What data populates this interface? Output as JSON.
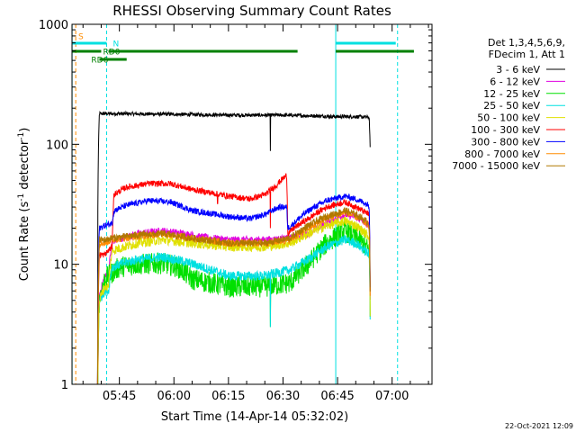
{
  "chart_data": {
    "type": "line",
    "title": "RHESSI Observing Summary Count Rates",
    "xlabel": "Start Time (14-Apr-14 05:32:02)",
    "ylabel_main": "Count Rate (s",
    "ylabel_sup1": "-1",
    "ylabel_mid": " detector",
    "ylabel_sup2": "-1",
    "ylabel_end": ")",
    "yscale": "log",
    "ylim": [
      1,
      1000
    ],
    "xlim_minutes": [
      -13.03,
      85.97
    ],
    "x_ticks": [
      {
        "min": 0,
        "label": "05:45"
      },
      {
        "min": 15,
        "label": "06:00"
      },
      {
        "min": 30,
        "label": "06:15"
      },
      {
        "min": 45,
        "label": "06:30"
      },
      {
        "min": 60,
        "label": "06:45"
      },
      {
        "min": 75,
        "label": "07:00"
      }
    ],
    "y_ticks": [
      {
        "v": 1,
        "label": "1"
      },
      {
        "v": 10,
        "label": "10"
      },
      {
        "v": 100,
        "label": "100"
      },
      {
        "v": 1000,
        "label": "1000"
      }
    ],
    "legend_header": [
      "Det 1,3,4,5,6,9,",
      "FDecim 1, Att 1"
    ],
    "series": [
      {
        "name": "3 - 6 keV",
        "color": "#000000",
        "noise": 0.015,
        "points": [
          [
            -6,
            0
          ],
          [
            -5.5,
            180
          ],
          [
            0,
            180
          ],
          [
            15,
            178
          ],
          [
            30,
            175
          ],
          [
            45,
            175
          ],
          [
            55,
            172
          ],
          [
            60,
            170
          ],
          [
            65,
            170
          ],
          [
            68.7,
            168
          ],
          [
            69,
            80
          ]
        ]
      },
      {
        "name": "6 - 12 keV",
        "color": "#e000e0",
        "noise": 0.03,
        "points": [
          [
            -6,
            0
          ],
          [
            -5.5,
            5.5
          ],
          [
            -4,
            8
          ],
          [
            -3,
            8
          ],
          [
            -2,
            15.5
          ],
          [
            5,
            18
          ],
          [
            12,
            19
          ],
          [
            18,
            18
          ],
          [
            22,
            17
          ],
          [
            30,
            16
          ],
          [
            40,
            16
          ],
          [
            47,
            16.5
          ],
          [
            52,
            18
          ],
          [
            57,
            22
          ],
          [
            62,
            26
          ],
          [
            65,
            25
          ],
          [
            68.7,
            21
          ],
          [
            69,
            3
          ]
        ]
      },
      {
        "name": "12 - 25 keV",
        "color": "#00e000",
        "noise": 0.09,
        "points": [
          [
            -6,
            0
          ],
          [
            -5.5,
            5
          ],
          [
            -4,
            7.5
          ],
          [
            -2,
            8.5
          ],
          [
            0,
            9.5
          ],
          [
            5,
            10
          ],
          [
            12,
            10.2
          ],
          [
            16,
            9.5
          ],
          [
            20,
            7.5
          ],
          [
            25,
            7
          ],
          [
            30,
            6.5
          ],
          [
            40,
            6.5
          ],
          [
            47,
            7
          ],
          [
            52,
            10
          ],
          [
            57,
            15
          ],
          [
            62,
            19
          ],
          [
            65,
            17
          ],
          [
            68.7,
            13
          ],
          [
            69,
            2.5
          ]
        ]
      },
      {
        "name": "25 - 50 keV",
        "color": "#00e0e0",
        "noise": 0.04,
        "points": [
          [
            -6,
            0
          ],
          [
            -5.5,
            5
          ],
          [
            -4,
            6
          ],
          [
            -3,
            6
          ],
          [
            -2,
            9.5
          ],
          [
            5,
            11
          ],
          [
            12,
            11.5
          ],
          [
            18,
            10.5
          ],
          [
            25,
            9
          ],
          [
            30,
            8
          ],
          [
            40,
            8
          ],
          [
            47,
            9
          ],
          [
            52,
            11
          ],
          [
            57,
            14
          ],
          [
            62,
            16
          ],
          [
            65,
            15
          ],
          [
            68.7,
            12
          ],
          [
            69,
            2.5
          ]
        ]
      },
      {
        "name": "50 - 100 keV",
        "color": "#e0e000",
        "noise": 0.04,
        "points": [
          [
            -6,
            0
          ],
          [
            -5.5,
            5
          ],
          [
            -4,
            6.5
          ],
          [
            -3,
            6.5
          ],
          [
            -2,
            13
          ],
          [
            5,
            15
          ],
          [
            12,
            16
          ],
          [
            20,
            15
          ],
          [
            30,
            14
          ],
          [
            40,
            14
          ],
          [
            47,
            15
          ],
          [
            52,
            18
          ],
          [
            57,
            21
          ],
          [
            62,
            23
          ],
          [
            65,
            21
          ],
          [
            68.7,
            17
          ],
          [
            69,
            2
          ]
        ]
      },
      {
        "name": "100 - 300 keV",
        "color": "#ff0000",
        "noise": 0.025,
        "points": [
          [
            -6,
            0
          ],
          [
            -5.5,
            12
          ],
          [
            -4,
            12
          ],
          [
            -2,
            14
          ],
          [
            -1.5,
            38
          ],
          [
            2,
            44
          ],
          [
            8,
            47
          ],
          [
            14,
            47
          ],
          [
            20,
            42
          ],
          [
            30,
            37
          ],
          [
            36,
            35
          ],
          [
            40,
            38
          ],
          [
            43,
            45
          ],
          [
            45,
            52
          ],
          [
            46,
            55
          ],
          [
            46.3,
            18
          ],
          [
            48,
            20
          ],
          [
            52,
            24
          ],
          [
            57,
            30
          ],
          [
            62,
            33
          ],
          [
            65,
            30
          ],
          [
            68.7,
            26
          ],
          [
            69,
            3
          ]
        ]
      },
      {
        "name": "300 - 800 keV",
        "color": "#0000ff",
        "noise": 0.025,
        "points": [
          [
            -6,
            0
          ],
          [
            -5.5,
            20
          ],
          [
            -4,
            21
          ],
          [
            -2,
            22
          ],
          [
            -1.5,
            28
          ],
          [
            2,
            31
          ],
          [
            8,
            34
          ],
          [
            14,
            33
          ],
          [
            20,
            28
          ],
          [
            30,
            25
          ],
          [
            36,
            24
          ],
          [
            40,
            26
          ],
          [
            44,
            30
          ],
          [
            46,
            30
          ],
          [
            46.3,
            20
          ],
          [
            48,
            22
          ],
          [
            52,
            28
          ],
          [
            57,
            34
          ],
          [
            62,
            37
          ],
          [
            65,
            35
          ],
          [
            68.7,
            31
          ],
          [
            69,
            3
          ]
        ]
      },
      {
        "name": "800 - 7000 keV",
        "color": "#ff8c00",
        "noise": 0.03,
        "points": [
          [
            -6,
            0
          ],
          [
            -5.5,
            15
          ],
          [
            -4,
            15
          ],
          [
            -2,
            16
          ],
          [
            5,
            17
          ],
          [
            12,
            18
          ],
          [
            20,
            16.5
          ],
          [
            30,
            15
          ],
          [
            40,
            15
          ],
          [
            47,
            16
          ],
          [
            52,
            20
          ],
          [
            57,
            24
          ],
          [
            62,
            27
          ],
          [
            65,
            25
          ],
          [
            68.7,
            21
          ],
          [
            69,
            3
          ]
        ]
      },
      {
        "name": "7000 - 15000 keV",
        "color": "#b07800",
        "noise": 0.03,
        "points": [
          [
            -6,
            0
          ],
          [
            -5.5,
            16
          ],
          [
            -4,
            16
          ],
          [
            -2,
            16.5
          ],
          [
            5,
            17.5
          ],
          [
            12,
            18
          ],
          [
            20,
            16.5
          ],
          [
            30,
            15
          ],
          [
            40,
            15
          ],
          [
            47,
            16.5
          ],
          [
            52,
            21
          ],
          [
            57,
            25
          ],
          [
            62,
            28
          ],
          [
            65,
            26
          ],
          [
            68.7,
            22
          ],
          [
            69,
            3
          ]
        ]
      }
    ],
    "flag_bars": [
      {
        "label": "S",
        "color": "#ff8c00",
        "segments": [
          [
            -12.3,
            -11.8
          ]
        ]
      },
      {
        "label": "N",
        "color": "#00e0e0",
        "segments": [
          [
            -13,
            -3.5
          ],
          [
            59.5,
            76
          ]
        ]
      },
      {
        "label": "RD0",
        "color": "#008000",
        "segments": [
          [
            -13,
            -5
          ],
          [
            -3,
            49
          ],
          [
            59.5,
            81
          ]
        ]
      },
      {
        "label": "RD6",
        "color": "#008000",
        "segments": [
          [
            -5.5,
            2
          ]
        ]
      }
    ],
    "markers": [
      {
        "kind": "dashed",
        "color": "#ff8c00",
        "min": -12
      },
      {
        "kind": "solid",
        "color": "#00e0e0",
        "min": -13
      },
      {
        "kind": "dashed",
        "color": "#00e0e0",
        "min": -3.5
      },
      {
        "kind": "solid",
        "color": "#00e0e0",
        "min": 59.5
      },
      {
        "kind": "dashed",
        "color": "#00e0e0",
        "min": 76.5
      }
    ],
    "dips": [
      {
        "series": 0,
        "min": 41.5,
        "value": 88
      },
      {
        "series": 5,
        "min": 41.5,
        "value": 20
      },
      {
        "series": 2,
        "min": 41.5,
        "value": 3.0
      },
      {
        "series": 3,
        "min": 41.5,
        "value": 3.0
      },
      {
        "series": 5,
        "min": 27,
        "value": 32
      }
    ],
    "timestamp": "22-Oct-2021 12:09"
  }
}
